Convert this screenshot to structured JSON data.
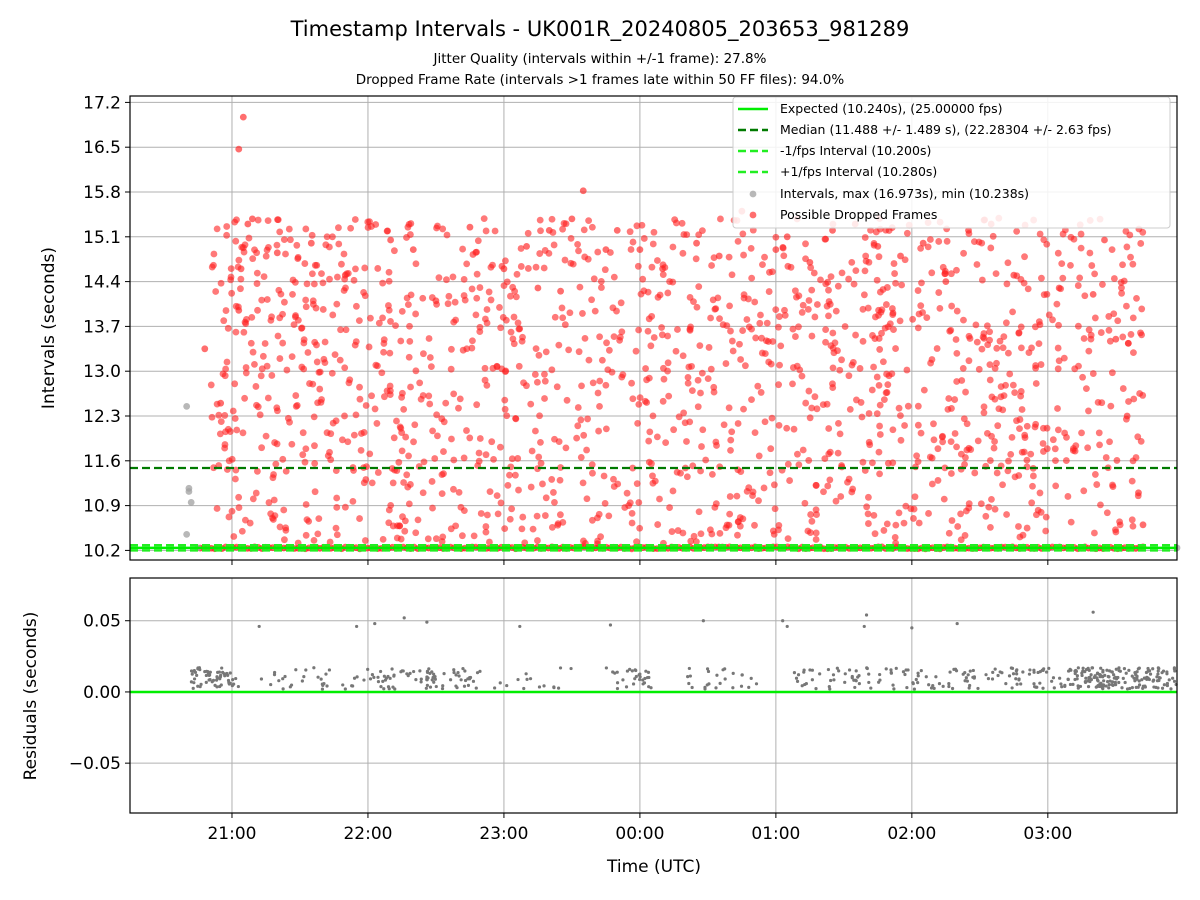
{
  "figure": {
    "title": "Timestamp Intervals - UK001R_20240805_203653_981289",
    "subtitle_1": "Jitter Quality (intervals within +/-1 frame): 27.8%",
    "subtitle_2": "Dropped Frame Rate (intervals >1 frames late within 50 FF files): 94.0%"
  },
  "colors": {
    "expected": "#00ee00",
    "median": "#007a00",
    "interval_band": "#22ee22",
    "intervals": "#a0a0a0",
    "dropped": "#ff2020",
    "residuals": "#777777",
    "grid": "#b0b0b0"
  },
  "chart_data": [
    {
      "type": "scatter",
      "ylabel": "Intervals (seconds)",
      "ylim": [
        10.05,
        17.3
      ],
      "yticks": [
        "10.2",
        "10.9",
        "11.6",
        "12.3",
        "13.0",
        "13.7",
        "14.4",
        "15.1",
        "15.8",
        "16.5",
        "17.2"
      ],
      "xlim": [
        "20:15",
        "03:57"
      ],
      "grid": true,
      "legend_position": "top-right",
      "legend": [
        "Expected (10.240s), (25.00000 fps)",
        "Median (11.488 +/- 1.489 s), (22.28304 +/- 2.63 fps)",
        "-1/fps Interval (10.200s)",
        "+1/fps Interval (10.280s)",
        "Intervals, max (16.973s), min (10.238s)",
        "Possible Dropped Frames"
      ],
      "lines": [
        {
          "name": "Expected",
          "y": 10.24,
          "style": "solid"
        },
        {
          "name": "Median",
          "y": 11.488,
          "style": "dashed"
        },
        {
          "name": "-1/fps Interval",
          "y": 10.2,
          "style": "dashed"
        },
        {
          "name": "+1/fps Interval",
          "y": 10.28,
          "style": "dashed"
        }
      ],
      "series": [
        {
          "name": "Intervals, max (16.973s), min (10.238s)",
          "points": [
            [
              "20:40",
              12.45
            ],
            [
              "20:41",
              11.17
            ],
            [
              "20:41",
              11.12
            ],
            [
              "20:42",
              10.95
            ],
            [
              "20:40",
              10.45
            ],
            [
              "20:38",
              10.24
            ],
            [
              "20:45",
              10.24
            ],
            [
              "03:57",
              10.24
            ]
          ]
        },
        {
          "name": "Possible Dropped Frames",
          "points": [
            [
              "21:05",
              16.97
            ],
            [
              "21:03",
              16.47
            ],
            [
              "20:48",
              13.35
            ],
            [
              "21:07",
              15.3
            ],
            [
              "21:09",
              15.38
            ],
            [
              "21:05",
              14.93
            ],
            [
              "21:04",
              14.6
            ],
            [
              "21:03",
              13.95
            ],
            [
              "20:55",
              12.5
            ],
            [
              "21:20",
              14.85
            ],
            [
              "21:35",
              15.0
            ],
            [
              "21:50",
              14.5
            ],
            [
              "22:10",
              15.05
            ],
            [
              "22:20",
              14.9
            ],
            [
              "22:30",
              14.1
            ],
            [
              "22:45",
              15.25
            ],
            [
              "23:00",
              14.6
            ],
            [
              "23:10",
              14.95
            ],
            [
              "23:15",
              14.3
            ],
            [
              "23:20",
              15.2
            ],
            [
              "23:25",
              14.25
            ],
            [
              "23:30",
              15.38
            ],
            [
              "23:35",
              15.82
            ],
            [
              "23:45",
              14.9
            ],
            [
              "23:50",
              15.2
            ],
            [
              "00:00",
              14.9
            ],
            [
              "00:10",
              14.6
            ],
            [
              "00:25",
              15.0
            ],
            [
              "00:35",
              14.8
            ],
            [
              "00:45",
              15.5
            ],
            [
              "01:00",
              14.9
            ],
            [
              "01:05",
              15.1
            ],
            [
              "01:15",
              14.7
            ],
            [
              "01:25",
              15.2
            ],
            [
              "01:35",
              15.3
            ],
            [
              "01:45",
              14.95
            ],
            [
              "01:55",
              14.8
            ],
            [
              "02:05",
              15.0
            ],
            [
              "02:15",
              14.4
            ],
            [
              "02:25",
              15.2
            ],
            [
              "02:35",
              15.3
            ],
            [
              "02:45",
              14.5
            ],
            [
              "03:05",
              14.3
            ],
            [
              "03:20",
              14.2
            ],
            [
              "03:25",
              15.05
            ],
            [
              "03:30",
              13.5
            ],
            [
              "03:35",
              12.3
            ],
            [
              "03:40",
              11.1
            ],
            [
              "03:42",
              10.6
            ]
          ]
        }
      ],
      "xticks": [
        "21:00",
        "22:00",
        "23:00",
        "00:00",
        "01:00",
        "02:00",
        "03:00"
      ]
    },
    {
      "type": "scatter",
      "xlabel": "Time (UTC)",
      "ylabel": "Residuals (seconds)",
      "ylim": [
        -0.085,
        0.08
      ],
      "yticks": [
        "−0.05",
        "0.00",
        "0.05"
      ],
      "xlim": [
        "20:15",
        "03:57"
      ],
      "grid": true,
      "lines": [
        {
          "name": "zero",
          "y": 0.0,
          "style": "solid"
        }
      ],
      "series": [
        {
          "name": "Residuals",
          "points": [
            [
              "21:12",
              0.046
            ],
            [
              "21:55",
              0.046
            ],
            [
              "22:03",
              0.048
            ],
            [
              "22:16",
              0.052
            ],
            [
              "22:26",
              0.049
            ],
            [
              "23:07",
              0.046
            ],
            [
              "23:47",
              0.047
            ],
            [
              "00:28",
              0.05
            ],
            [
              "01:03",
              0.05
            ],
            [
              "01:05",
              0.046
            ],
            [
              "01:39",
              0.046
            ],
            [
              "01:40",
              0.054
            ],
            [
              "02:00",
              0.045
            ],
            [
              "02:20",
              0.048
            ],
            [
              "03:20",
              0.056
            ]
          ]
        }
      ],
      "xticks": [
        "21:00",
        "22:00",
        "23:00",
        "00:00",
        "01:00",
        "02:00",
        "03:00"
      ]
    }
  ]
}
